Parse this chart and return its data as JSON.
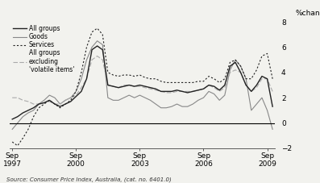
{
  "title": "",
  "ylabel": "%change",
  "source": "Source: Consumer Price Index, Australia, (cat. no. 6401.0)",
  "ylim": [
    -2,
    8
  ],
  "yticks": [
    -2,
    0,
    2,
    4,
    6,
    8
  ],
  "x_tick_labels": [
    "Sep\n1997",
    "Sep\n2000",
    "Sep\n2003",
    "Sep\n2006",
    "Sep\n2009"
  ],
  "x_tick_positions": [
    0,
    12,
    24,
    36,
    48
  ],
  "quarters": 50,
  "all_groups": [
    0.3,
    0.5,
    0.8,
    1.0,
    1.2,
    1.5,
    1.6,
    1.8,
    1.5,
    1.3,
    1.5,
    1.7,
    2.1,
    2.5,
    3.5,
    5.8,
    6.1,
    5.8,
    3.0,
    2.9,
    2.8,
    2.9,
    3.0,
    2.9,
    3.0,
    2.9,
    2.8,
    2.7,
    2.5,
    2.5,
    2.5,
    2.6,
    2.5,
    2.4,
    2.5,
    2.6,
    2.7,
    3.0,
    2.9,
    2.6,
    3.0,
    4.5,
    4.8,
    4.0,
    3.0,
    2.5,
    3.0,
    3.7,
    3.5,
    1.3
  ],
  "goods": [
    -0.5,
    0.0,
    0.5,
    0.8,
    1.0,
    1.5,
    1.8,
    2.2,
    2.0,
    1.5,
    1.8,
    2.0,
    2.5,
    3.5,
    5.0,
    6.0,
    6.5,
    6.2,
    2.0,
    1.8,
    1.8,
    2.0,
    2.2,
    2.0,
    2.2,
    2.0,
    1.8,
    1.5,
    1.2,
    1.2,
    1.3,
    1.5,
    1.3,
    1.3,
    1.5,
    1.8,
    2.0,
    2.5,
    2.3,
    1.8,
    2.2,
    4.2,
    5.0,
    4.5,
    3.5,
    1.0,
    1.5,
    2.0,
    1.0,
    -0.5
  ],
  "services": [
    -1.5,
    -1.8,
    -1.2,
    -0.5,
    0.5,
    1.2,
    1.5,
    1.8,
    1.5,
    1.2,
    1.5,
    1.8,
    2.5,
    4.0,
    6.0,
    7.2,
    7.5,
    7.0,
    4.0,
    3.8,
    3.7,
    3.8,
    3.8,
    3.7,
    3.8,
    3.6,
    3.5,
    3.5,
    3.3,
    3.2,
    3.2,
    3.2,
    3.2,
    3.2,
    3.2,
    3.3,
    3.3,
    3.7,
    3.5,
    3.2,
    3.5,
    4.8,
    5.0,
    4.5,
    3.5,
    3.5,
    4.2,
    5.3,
    5.5,
    3.5
  ],
  "excl_volatile": [
    2.0,
    2.0,
    1.8,
    1.7,
    1.5,
    1.5,
    1.6,
    1.7,
    1.5,
    1.5,
    1.8,
    2.0,
    2.2,
    2.8,
    3.5,
    5.0,
    5.3,
    5.0,
    3.0,
    2.9,
    2.8,
    3.0,
    3.0,
    2.9,
    2.9,
    2.8,
    2.7,
    2.6,
    2.5,
    2.4,
    2.4,
    2.5,
    2.5,
    2.5,
    2.5,
    2.6,
    2.7,
    3.0,
    2.8,
    2.5,
    2.8,
    4.0,
    4.2,
    4.0,
    3.0,
    2.5,
    2.8,
    3.5,
    3.5,
    2.5
  ],
  "color_all_groups": "#222222",
  "color_goods": "#888888",
  "color_services": "#222222",
  "color_excl": "#aaaaaa",
  "bg_color": "#f2f2ee"
}
